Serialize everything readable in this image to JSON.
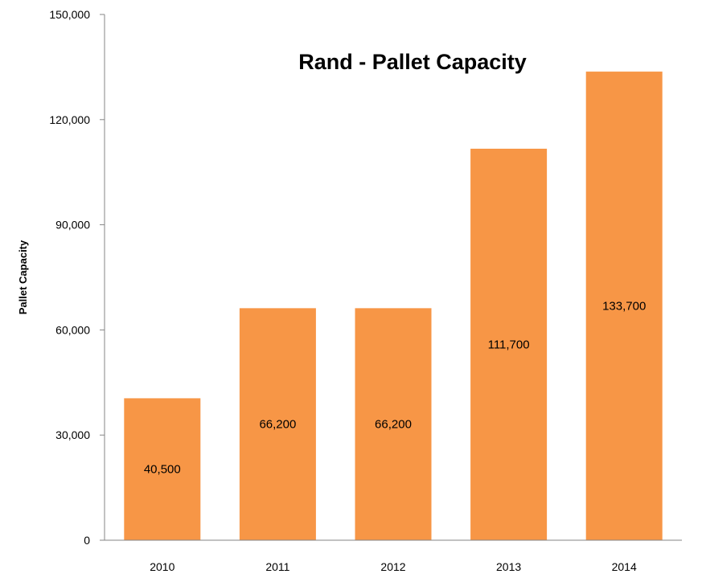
{
  "chart_data": {
    "type": "bar",
    "title": "Rand - Pallet Capacity",
    "xlabel": "",
    "ylabel": "Pallet Capacity",
    "categories": [
      "2010",
      "2011",
      "2012",
      "2013",
      "2014"
    ],
    "values": [
      40500,
      66200,
      66200,
      111700,
      133700
    ],
    "value_labels": [
      "40,500",
      "66,200",
      "66,200",
      "111,700",
      "133,700"
    ],
    "ylim": [
      0,
      150000
    ],
    "yticks": [
      0,
      30000,
      60000,
      90000,
      120000,
      150000
    ],
    "ytick_labels": [
      "0",
      "30,000",
      "60,000",
      "90,000",
      "120,000",
      "150,000"
    ],
    "grid": false,
    "legend": "none",
    "bar_color": "#F79646"
  }
}
